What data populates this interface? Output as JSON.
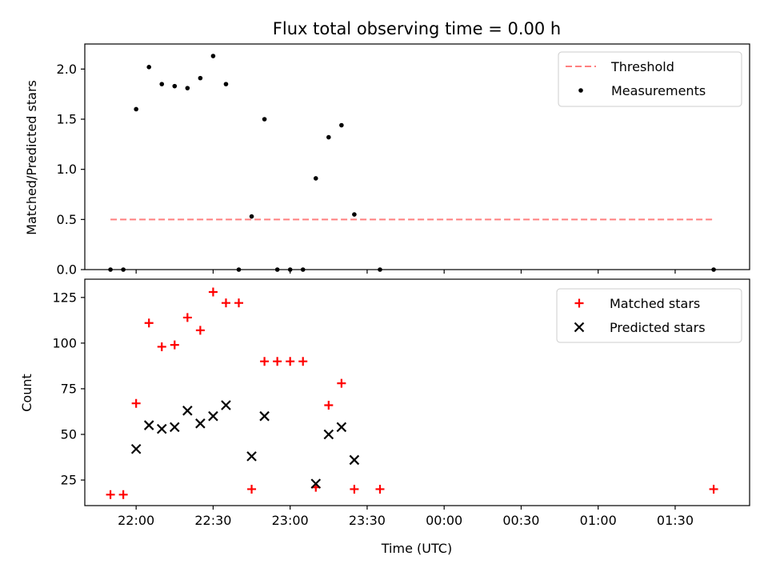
{
  "chart_data": [
    {
      "type": "scatter",
      "title": "Flux total observing time = 0.00 h",
      "xlabel": "",
      "ylabel": "Matched/Predicted stars",
      "ylim": [
        0,
        2.25
      ],
      "yticks": [
        0.0,
        0.5,
        1.0,
        1.5,
        2.0
      ],
      "ytick_labels": [
        "0.0",
        "0.5",
        "1.0",
        "1.5",
        "2.0"
      ],
      "legend": "top-right",
      "series": [
        {
          "name": "Threshold",
          "kind": "line",
          "style": "dashed",
          "color": "#ff7f7f",
          "points": [
            [
              "21:50",
              0.5
            ],
            [
              "01:45",
              0.5
            ]
          ]
        },
        {
          "name": "Measurements",
          "kind": "scatter",
          "marker": "dot",
          "color": "#000000",
          "points": [
            [
              "21:50",
              0.0
            ],
            [
              "21:55",
              0.0
            ],
            [
              "22:00",
              1.6
            ],
            [
              "22:05",
              2.02
            ],
            [
              "22:10",
              1.85
            ],
            [
              "22:15",
              1.83
            ],
            [
              "22:20",
              1.81
            ],
            [
              "22:25",
              1.91
            ],
            [
              "22:30",
              2.13
            ],
            [
              "22:35",
              1.85
            ],
            [
              "22:40",
              0.0
            ],
            [
              "22:45",
              0.53
            ],
            [
              "22:50",
              1.5
            ],
            [
              "22:55",
              0.0
            ],
            [
              "23:00",
              0.0
            ],
            [
              "23:05",
              0.0
            ],
            [
              "23:10",
              0.91
            ],
            [
              "23:15",
              1.32
            ],
            [
              "23:20",
              1.44
            ],
            [
              "23:25",
              0.55
            ],
            [
              "23:35",
              0.0
            ],
            [
              "01:45",
              0.0
            ]
          ]
        }
      ]
    },
    {
      "type": "scatter",
      "title": "",
      "xlabel": "Time (UTC)",
      "ylabel": "Count",
      "ylim": [
        11,
        135
      ],
      "yticks": [
        25,
        50,
        75,
        100,
        125
      ],
      "ytick_labels": [
        "25",
        "50",
        "75",
        "100",
        "125"
      ],
      "xlim": [
        "21:40",
        "01:59"
      ],
      "xticks": [
        "22:00",
        "22:30",
        "23:00",
        "23:30",
        "00:00",
        "00:30",
        "01:00",
        "01:30"
      ],
      "legend": "top-right",
      "series": [
        {
          "name": "Matched stars",
          "kind": "scatter",
          "marker": "plus",
          "color": "#ff0000",
          "points": [
            [
              "21:50",
              17
            ],
            [
              "21:55",
              17
            ],
            [
              "22:00",
              67
            ],
            [
              "22:05",
              111
            ],
            [
              "22:10",
              98
            ],
            [
              "22:15",
              99
            ],
            [
              "22:20",
              114
            ],
            [
              "22:25",
              107
            ],
            [
              "22:30",
              128
            ],
            [
              "22:35",
              122
            ],
            [
              "22:40",
              122
            ],
            [
              "22:45",
              20
            ],
            [
              "22:50",
              90
            ],
            [
              "22:55",
              90
            ],
            [
              "23:00",
              90
            ],
            [
              "23:05",
              90
            ],
            [
              "23:10",
              21
            ],
            [
              "23:15",
              66
            ],
            [
              "23:20",
              78
            ],
            [
              "23:25",
              20
            ],
            [
              "23:35",
              20
            ],
            [
              "01:45",
              20
            ]
          ]
        },
        {
          "name": "Predicted stars",
          "kind": "scatter",
          "marker": "x",
          "color": "#000000",
          "points": [
            [
              "22:00",
              42
            ],
            [
              "22:05",
              55
            ],
            [
              "22:10",
              53
            ],
            [
              "22:15",
              54
            ],
            [
              "22:20",
              63
            ],
            [
              "22:25",
              56
            ],
            [
              "22:30",
              60
            ],
            [
              "22:35",
              66
            ],
            [
              "22:45",
              38
            ],
            [
              "22:50",
              60
            ],
            [
              "23:10",
              23
            ],
            [
              "23:15",
              50
            ],
            [
              "23:20",
              54
            ],
            [
              "23:25",
              36
            ]
          ]
        }
      ]
    }
  ]
}
